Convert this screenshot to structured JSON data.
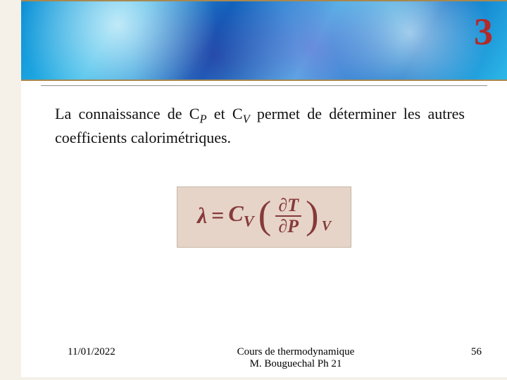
{
  "banner": {
    "page_number": "3",
    "border_color": "#a88850",
    "bg_gradient": "fractal-blue-violet"
  },
  "body": {
    "text_before_cp": "La connaissance de ",
    "cp": "C",
    "cp_sub": "P",
    "between": " et ",
    "cv": "C",
    "cv_sub": "V",
    "text_after_cv": " permet de déterminer les autres coefficients calorimétriques.",
    "fontsize": 22,
    "color": "#111111"
  },
  "formula": {
    "lambda": "λ",
    "equals": "=",
    "coeff": "C",
    "coeff_sub": "V",
    "lparen": "(",
    "partial_top": "∂T",
    "partial_bottom": "∂P",
    "rparen": ")",
    "outer_sub": "V",
    "box_bg": "#e6d4c8",
    "text_color": "#863a3a",
    "fontsize": 32
  },
  "footer": {
    "date": "11/01/2022",
    "course_line1": "Cours de thermodynamique",
    "course_line2": "M. Bouguechal  Ph 21",
    "slide_number": "56",
    "fontsize": 15
  }
}
